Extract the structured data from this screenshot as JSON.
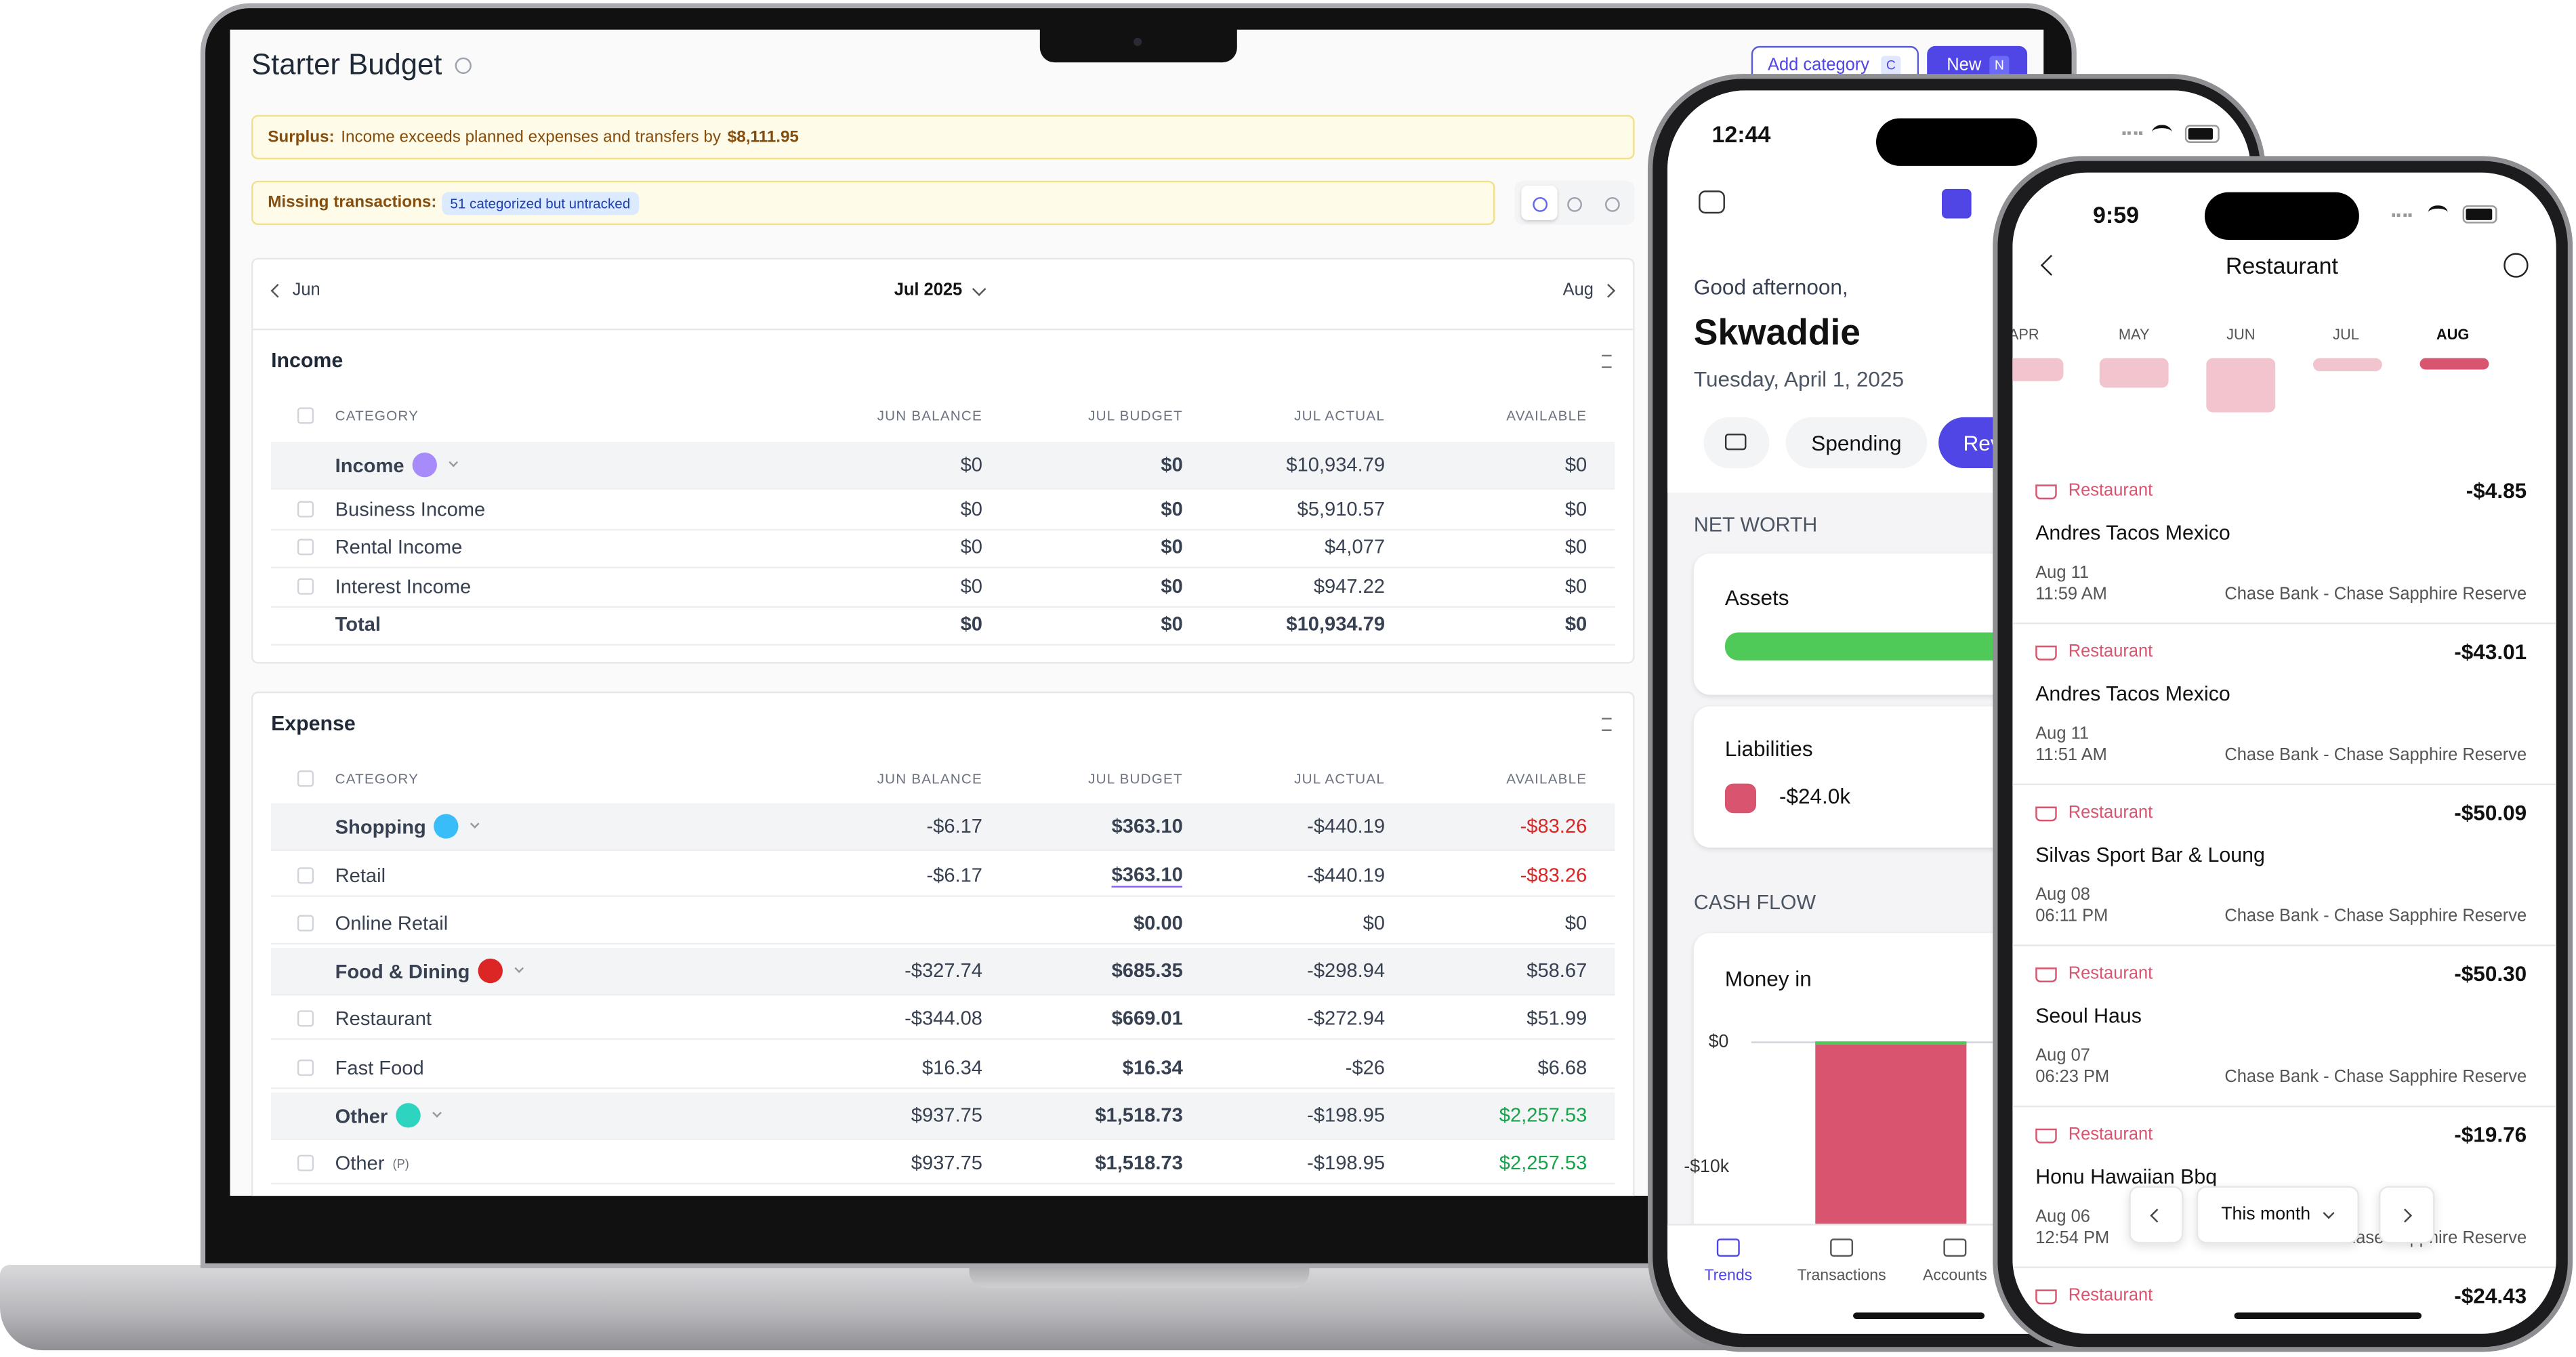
{
  "laptop": {
    "title": "Starter Budget",
    "buttons": [
      {
        "label": "Add category",
        "key": "C"
      },
      {
        "label": "New",
        "key": "N"
      }
    ],
    "surplus": {
      "label": "Surplus:",
      "text": "Income exceeds planned expenses and transfers by",
      "amount": "$8,111.95"
    },
    "missing": {
      "label": "Missing transactions:",
      "badge": "51 categorized but untracked"
    },
    "nav": {
      "prev": "Jun",
      "current": "Jul 2025",
      "next": "Aug"
    },
    "sections": [
      {
        "title": "Income",
        "columns": [
          "CATEGORY",
          "JUN BALANCE",
          "JUL BUDGET",
          "JUL ACTUAL",
          "AVAILABLE"
        ],
        "rows": [
          {
            "cells": [
              "Income",
              "$0",
              "$0",
              "$10,934.79",
              "$0"
            ]
          },
          {
            "cells": [
              "Business Income",
              "$0",
              "$0",
              "$5,910.57",
              "$0"
            ]
          },
          {
            "cells": [
              "Rental Income",
              "$0",
              "$0",
              "$4,077",
              "$0"
            ]
          },
          {
            "cells": [
              "Interest Income",
              "$0",
              "$0",
              "$947.22",
              "$0"
            ]
          },
          {
            "cells": [
              "Total",
              "$0",
              "$0",
              "$10,934.79",
              "$0"
            ]
          }
        ]
      },
      {
        "title": "Expense",
        "columns": [
          "CATEGORY",
          "JUN BALANCE",
          "JUL BUDGET",
          "JUL ACTUAL",
          "AVAILABLE"
        ],
        "rows": [
          {
            "cells": [
              "Shopping",
              "-$6.17",
              "$363.10",
              "-$440.19",
              "-$83.26"
            ]
          },
          {
            "cells": [
              "Retail",
              "-$6.17",
              "$363.10",
              "-$440.19",
              "-$83.26"
            ]
          },
          {
            "cells": [
              "Online Retail",
              "",
              "$0.00",
              "$0",
              "$0"
            ]
          },
          {
            "cells": [
              "Food & Dining",
              "-$327.74",
              "$685.35",
              "-$298.94",
              "$58.67"
            ]
          },
          {
            "cells": [
              "Restaurant",
              "-$344.08",
              "$669.01",
              "-$272.94",
              "$51.99"
            ]
          },
          {
            "cells": [
              "Fast Food",
              "$16.34",
              "$16.34",
              "-$26",
              "$6.68"
            ]
          },
          {
            "cells": [
              "Other",
              "$937.75",
              "$1,518.73",
              "-$198.95",
              "$2,257.53"
            ]
          },
          {
            "cells": [
              "Other",
              "$937.75",
              "$1,518.73",
              "-$198.95",
              "$2,257.53"
            ],
            "tag": "(P)"
          }
        ]
      }
    ]
  },
  "phone1": {
    "time": "12:44",
    "greeting": "Good afternoon,",
    "name": "Skwaddie",
    "date": "Tuesday, April 1, 2025",
    "tabs": [
      "Spending",
      "Rev"
    ],
    "net_worth": "NET WORTH",
    "assets": "Assets",
    "liabilities": "Liabilities",
    "liabilities_value": "-$24.0k",
    "cash_flow": "CASH FLOW",
    "money_in": "Money in",
    "axis": [
      "$0",
      "-$10k"
    ],
    "nav": [
      "Trends",
      "Transactions",
      "Accounts"
    ]
  },
  "phone2": {
    "time": "9:59",
    "title": "Restaurant",
    "months": [
      "APR",
      "MAY",
      "JUN",
      "JUL",
      "AUG"
    ],
    "transactions": [
      {
        "category": "Restaurant",
        "amount": "-$4.85",
        "merchant": "Andres Tacos Mexico",
        "date": "Aug 11",
        "time": "11:59 AM",
        "account": "Chase Bank - Chase Sapphire Reserve"
      },
      {
        "category": "Restaurant",
        "amount": "-$43.01",
        "merchant": "Andres Tacos Mexico",
        "date": "Aug 11",
        "time": "11:51 AM",
        "account": "Chase Bank - Chase Sapphire Reserve"
      },
      {
        "category": "Restaurant",
        "amount": "-$50.09",
        "merchant": "Silvas Sport Bar & Loung",
        "date": "Aug 08",
        "time": "06:11 PM",
        "account": "Chase Bank - Chase Sapphire Reserve"
      },
      {
        "category": "Restaurant",
        "amount": "-$50.30",
        "merchant": "Seoul Haus",
        "date": "Aug 07",
        "time": "06:23 PM",
        "account": "Chase Bank - Chase Sapphire Reserve"
      },
      {
        "category": "Restaurant",
        "amount": "-$19.76",
        "merchant": "Honu Hawaiian Bbq",
        "date": "Aug 06",
        "time": "12:54 PM",
        "account": "Chase Bank - Chase Sapphire Reserve"
      },
      {
        "category": "Restaurant",
        "amount": "-$24.43"
      }
    ],
    "period": "This month"
  }
}
